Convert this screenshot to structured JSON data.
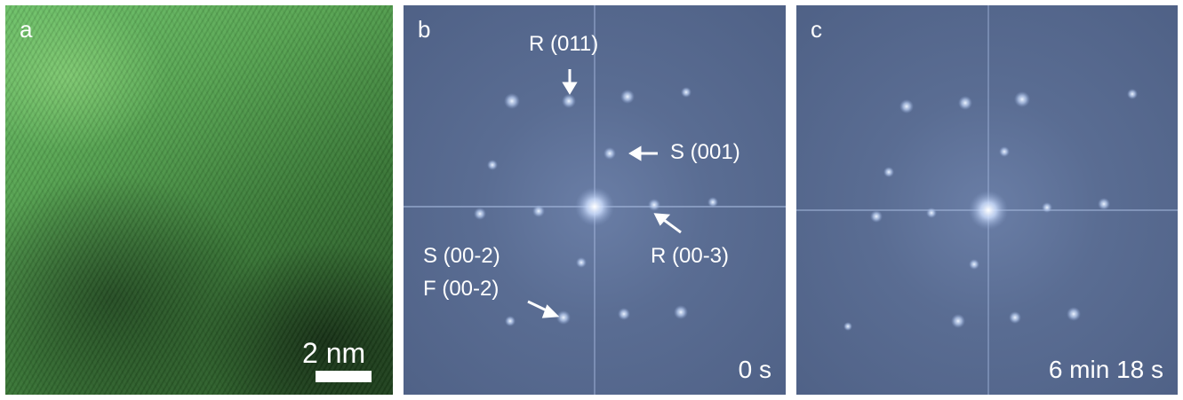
{
  "panels": {
    "a": {
      "letter": "a",
      "scale_label": "2 nm"
    },
    "b": {
      "letter": "b",
      "time": "0 s",
      "labels": {
        "r011": "R (011)",
        "s001": "S (001)",
        "s002": "S (00-2)",
        "f002": "F (00-2)",
        "r003": "R (00-3)"
      }
    },
    "c": {
      "letter": "c",
      "time": "6 min 18 s"
    }
  },
  "colors": {
    "hrtem_green": "#58a653",
    "fft_blue": "#5a6d93",
    "spot": "#d8e8ff",
    "annotation": "#ffffff"
  }
}
